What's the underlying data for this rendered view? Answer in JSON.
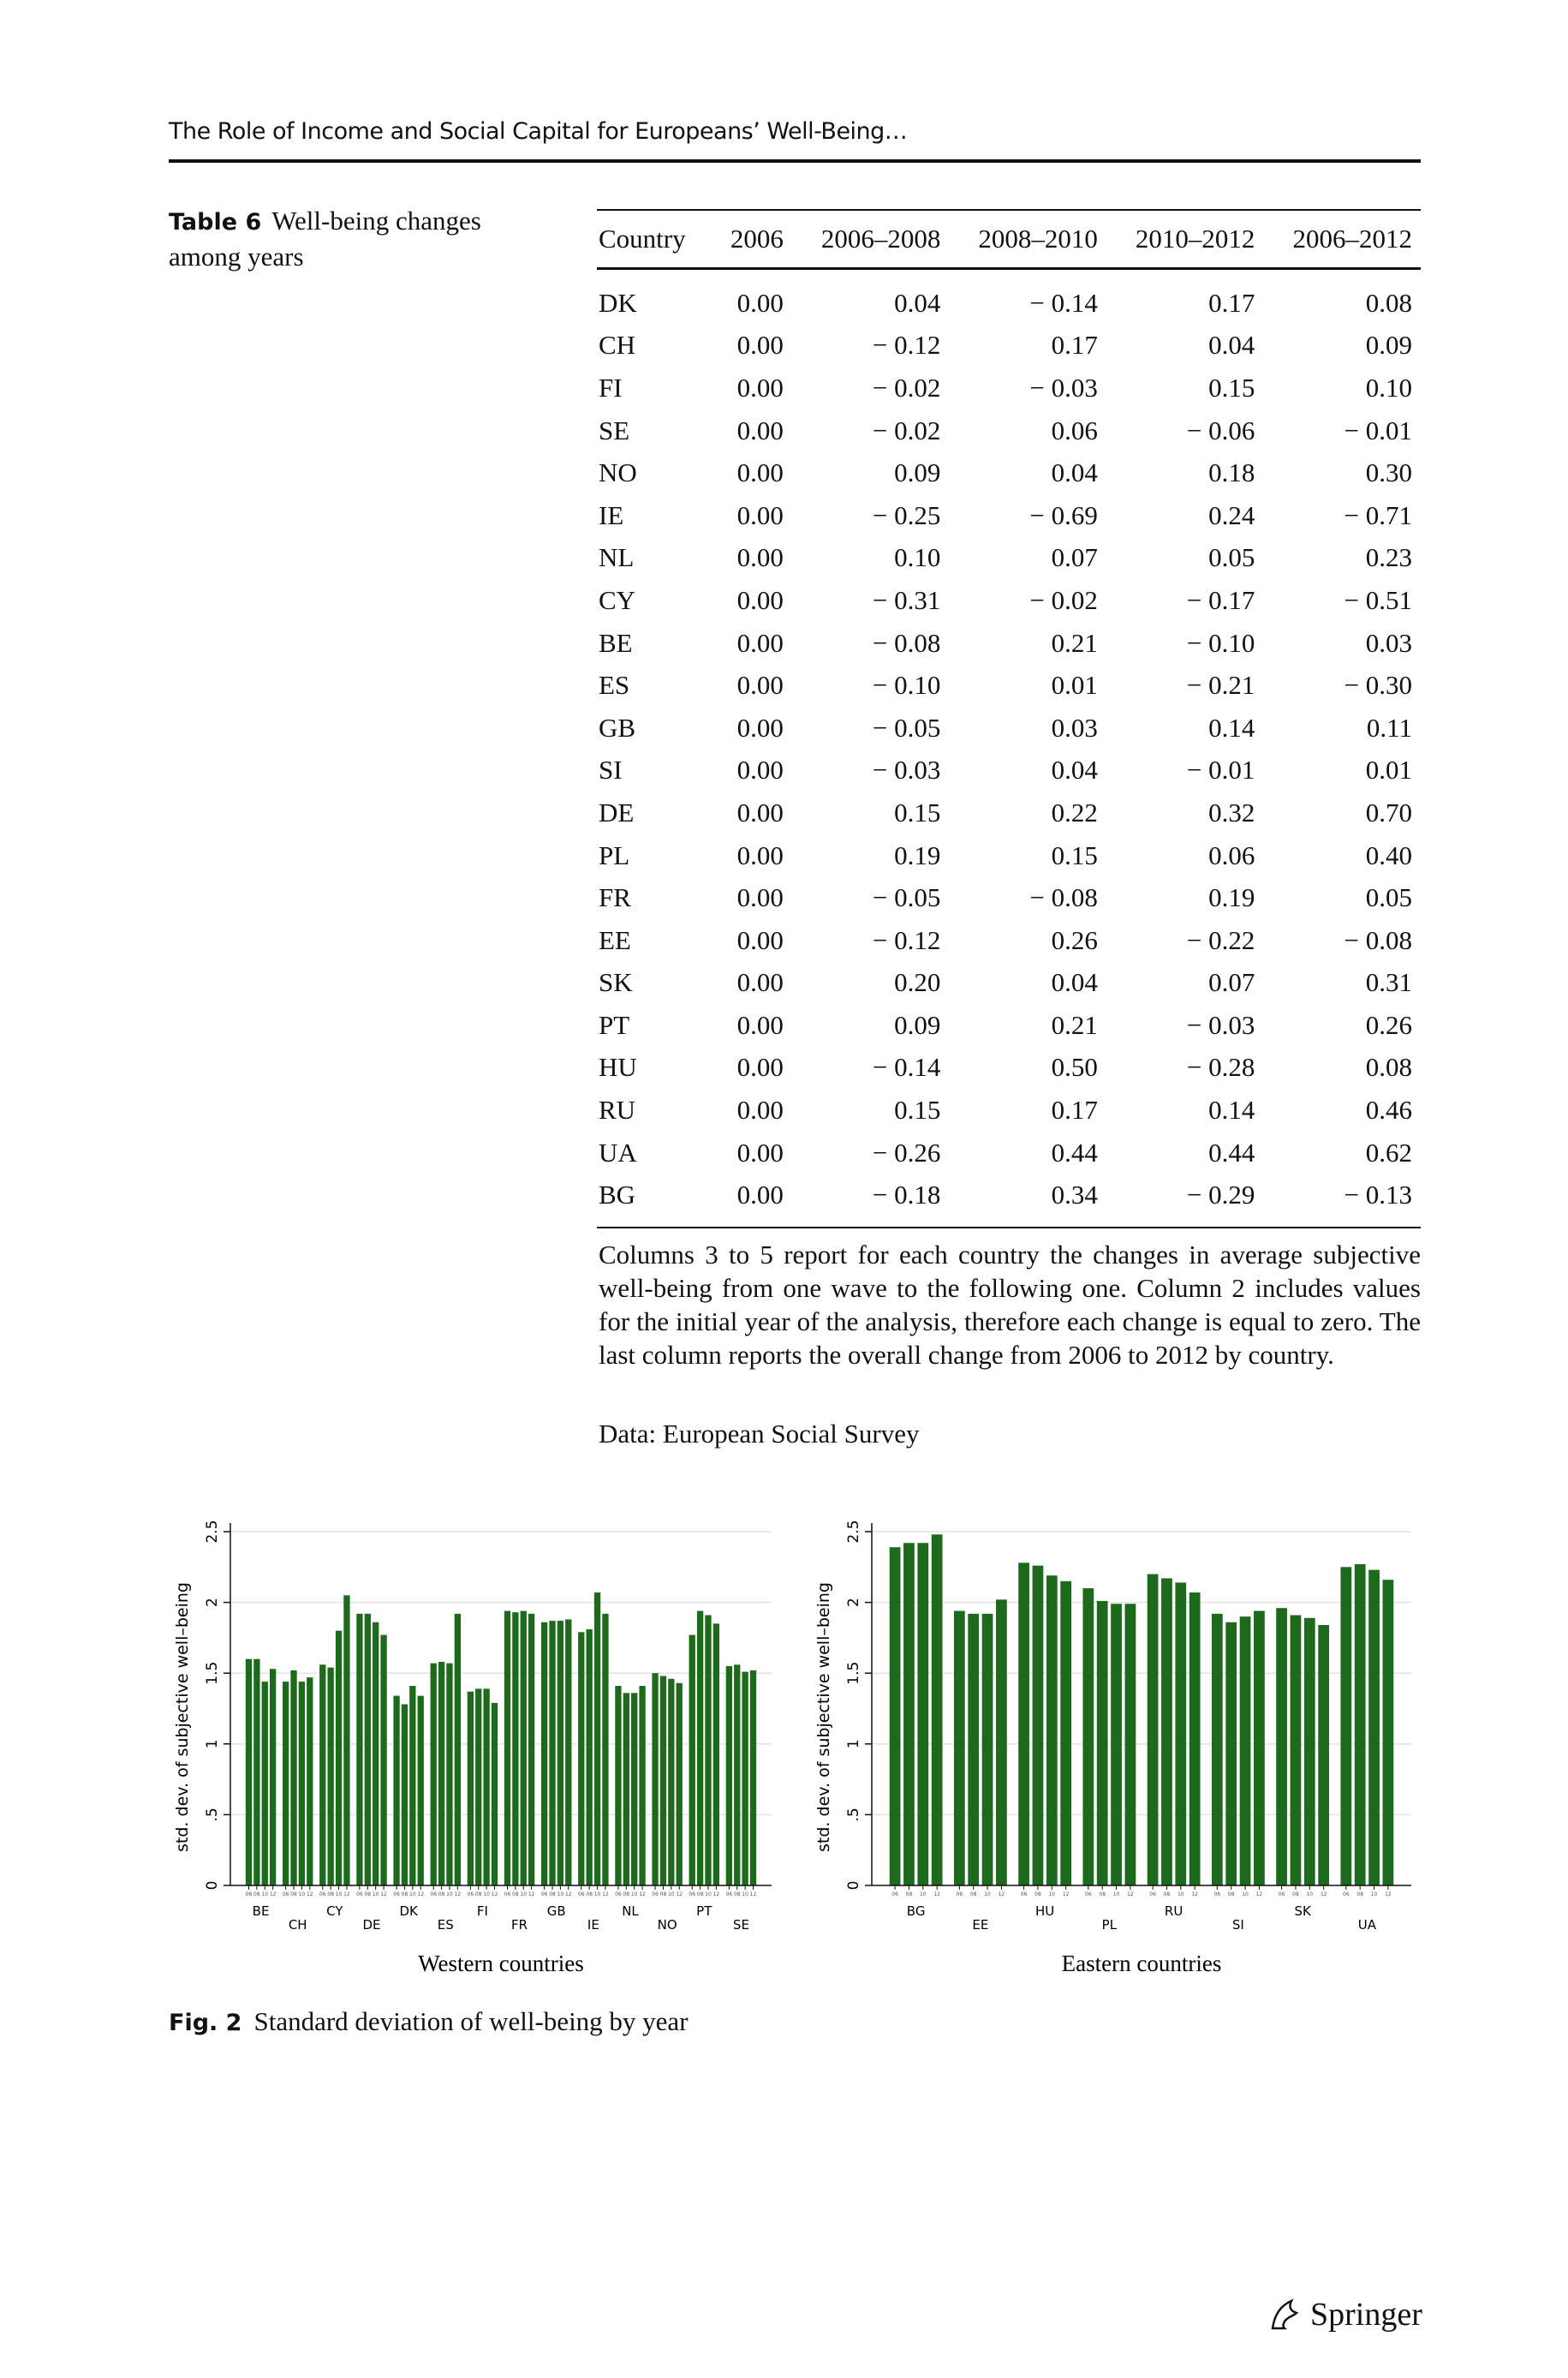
{
  "header": {
    "running_title": "The Role of Income and Social Capital for Europeans’ Well-Being…"
  },
  "table": {
    "label": "Table 6",
    "caption": "Well-being changes among years",
    "columns": [
      "Country",
      "2006",
      "2006–2008",
      "2008–2010",
      "2010–2012",
      "2006–2012"
    ],
    "rows": [
      [
        "DK",
        "0.00",
        "0.04",
        "− 0.14",
        "0.17",
        "0.08"
      ],
      [
        "CH",
        "0.00",
        "− 0.12",
        "0.17",
        "0.04",
        "0.09"
      ],
      [
        "FI",
        "0.00",
        "− 0.02",
        "− 0.03",
        "0.15",
        "0.10"
      ],
      [
        "SE",
        "0.00",
        "− 0.02",
        "0.06",
        "− 0.06",
        "− 0.01"
      ],
      [
        "NO",
        "0.00",
        "0.09",
        "0.04",
        "0.18",
        "0.30"
      ],
      [
        "IE",
        "0.00",
        "− 0.25",
        "− 0.69",
        "0.24",
        "− 0.71"
      ],
      [
        "NL",
        "0.00",
        "0.10",
        "0.07",
        "0.05",
        "0.23"
      ],
      [
        "CY",
        "0.00",
        "− 0.31",
        "− 0.02",
        "− 0.17",
        "− 0.51"
      ],
      [
        "BE",
        "0.00",
        "− 0.08",
        "0.21",
        "− 0.10",
        "0.03"
      ],
      [
        "ES",
        "0.00",
        "− 0.10",
        "0.01",
        "− 0.21",
        "− 0.30"
      ],
      [
        "GB",
        "0.00",
        "− 0.05",
        "0.03",
        "0.14",
        "0.11"
      ],
      [
        "SI",
        "0.00",
        "− 0.03",
        "0.04",
        "− 0.01",
        "0.01"
      ],
      [
        "DE",
        "0.00",
        "0.15",
        "0.22",
        "0.32",
        "0.70"
      ],
      [
        "PL",
        "0.00",
        "0.19",
        "0.15",
        "0.06",
        "0.40"
      ],
      [
        "FR",
        "0.00",
        "− 0.05",
        "− 0.08",
        "0.19",
        "0.05"
      ],
      [
        "EE",
        "0.00",
        "− 0.12",
        "0.26",
        "− 0.22",
        "− 0.08"
      ],
      [
        "SK",
        "0.00",
        "0.20",
        "0.04",
        "0.07",
        "0.31"
      ],
      [
        "PT",
        "0.00",
        "0.09",
        "0.21",
        "− 0.03",
        "0.26"
      ],
      [
        "HU",
        "0.00",
        "− 0.14",
        "0.50",
        "− 0.28",
        "0.08"
      ],
      [
        "RU",
        "0.00",
        "0.15",
        "0.17",
        "0.14",
        "0.46"
      ],
      [
        "UA",
        "0.00",
        "− 0.26",
        "0.44",
        "0.44",
        "0.62"
      ],
      [
        "BG",
        "0.00",
        "− 0.18",
        "0.34",
        "− 0.29",
        "− 0.13"
      ]
    ],
    "note": "Columns 3 to 5 report for each country the changes in average subjective well-being from one wave to the following one. Column 2 includes values for the initial year of the analysis, therefore each change is equal to zero. The last column reports the overall change from 2006 to 2012 by country.",
    "source": "Data: European Social Survey"
  },
  "figure": {
    "label": "Fig. 2",
    "caption": "Standard deviation of well-being by year",
    "charts": [
      {
        "type": "bar",
        "title": "Western countries",
        "ylabel": "std. dev. of subjective well–being",
        "categories": [
          "BE",
          "CH",
          "CY",
          "DE",
          "DK",
          "ES",
          "FI",
          "FR",
          "GB",
          "IE",
          "NL",
          "NO",
          "PT",
          "SE"
        ],
        "bar_labels": [
          "06",
          "08",
          "10",
          "12"
        ],
        "values": [
          [
            1.6,
            1.6,
            1.44,
            1.53
          ],
          [
            1.44,
            1.52,
            1.44,
            1.47
          ],
          [
            1.56,
            1.54,
            1.8,
            2.05
          ],
          [
            1.92,
            1.92,
            1.86,
            1.77
          ],
          [
            1.34,
            1.28,
            1.41,
            1.34
          ],
          [
            1.57,
            1.58,
            1.57,
            1.92
          ],
          [
            1.37,
            1.39,
            1.39,
            1.29
          ],
          [
            1.94,
            1.93,
            1.94,
            1.92
          ],
          [
            1.86,
            1.87,
            1.87,
            1.88
          ],
          [
            1.79,
            1.81,
            2.07,
            1.92
          ],
          [
            1.41,
            1.36,
            1.36,
            1.41
          ],
          [
            1.5,
            1.48,
            1.46,
            1.43
          ],
          [
            1.77,
            1.94,
            1.91,
            1.85
          ],
          [
            1.55,
            1.56,
            1.51,
            1.52
          ]
        ],
        "color": "#1d6a1d",
        "ylim": [
          0,
          2.5
        ],
        "yticks": [
          0,
          {
            "value": 0.5,
            "label": ".5"
          },
          1,
          1.5,
          2,
          2.5
        ],
        "grid": true
      },
      {
        "type": "bar",
        "title": "Eastern countries",
        "ylabel": "std. dev. of subjective well–being",
        "categories": [
          "BG",
          "EE",
          "HU",
          "PL",
          "RU",
          "SI",
          "SK",
          "UA"
        ],
        "bar_labels": [
          "06",
          "08",
          "10",
          "12"
        ],
        "values": [
          [
            2.39,
            2.42,
            2.42,
            2.48
          ],
          [
            1.94,
            1.92,
            1.92,
            2.02
          ],
          [
            2.28,
            2.26,
            2.19,
            2.15
          ],
          [
            2.1,
            2.01,
            1.99,
            1.99
          ],
          [
            2.2,
            2.17,
            2.14,
            2.07
          ],
          [
            1.92,
            1.86,
            1.9,
            1.94
          ],
          [
            1.96,
            1.91,
            1.89,
            1.84
          ],
          [
            2.25,
            2.27,
            2.23,
            2.16
          ]
        ],
        "color": "#1d6a1d",
        "ylim": [
          0,
          2.5
        ],
        "yticks": [
          0,
          {
            "value": 0.5,
            "label": ".5"
          },
          1,
          1.5,
          2,
          2.5
        ],
        "grid": true
      }
    ]
  },
  "footer": {
    "publisher": "Springer"
  }
}
